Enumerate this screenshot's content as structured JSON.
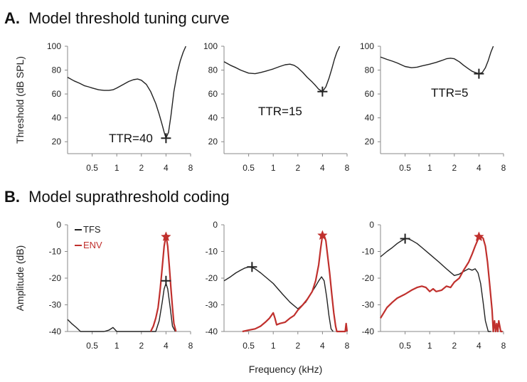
{
  "figure": {
    "panel_a": {
      "letter": "A.",
      "title": "Model threshold tuning curve"
    },
    "panel_b": {
      "letter": "B.",
      "title": "Model suprathreshold coding"
    },
    "shared_xlabel": "Frequency (kHz)"
  },
  "colors": {
    "tfs": "#222222",
    "env": "#c0302d",
    "axis": "#888888"
  },
  "chart_data": [
    {
      "type": "line",
      "panel": "A1",
      "xscale": "log",
      "xlim": [
        0.25,
        8
      ],
      "xticks": [
        0.5,
        1,
        2,
        4,
        8
      ],
      "xtick_labels": [
        "0.5",
        "1",
        "2",
        "4",
        "8"
      ],
      "ylim": [
        10,
        100
      ],
      "yticks": [
        20,
        40,
        60,
        80,
        100
      ],
      "ylabel": "Threshold (dB SPL)",
      "xlabel": "",
      "annotation": "TTR=40",
      "series": [
        {
          "color": "#222222",
          "x": [
            0.25,
            0.3,
            0.35,
            0.4,
            0.45,
            0.5,
            0.6,
            0.7,
            0.8,
            0.9,
            1.0,
            1.2,
            1.4,
            1.6,
            1.8,
            2.0,
            2.3,
            2.6,
            3.0,
            3.3,
            3.6,
            3.8,
            4.0,
            4.3,
            4.6,
            5.0,
            5.5,
            6.0,
            6.5,
            7.0
          ],
          "y": [
            74,
            71,
            69,
            67,
            66,
            65,
            63.5,
            63,
            63,
            63.5,
            65,
            68,
            70.5,
            72,
            72.5,
            71.5,
            68,
            62,
            52,
            43,
            34,
            28,
            23,
            28,
            42,
            62,
            78,
            88,
            95,
            100
          ]
        }
      ],
      "markers": [
        {
          "symbol": "+",
          "x": 4,
          "y": 23,
          "color": "#222222"
        }
      ]
    },
    {
      "type": "line",
      "panel": "A2",
      "xscale": "log",
      "xlim": [
        0.25,
        8
      ],
      "xticks": [
        0.5,
        1,
        2,
        4,
        8
      ],
      "xtick_labels": [
        "0.5",
        "1",
        "2",
        "4",
        "8"
      ],
      "ylim": [
        10,
        100
      ],
      "yticks": [
        20,
        40,
        60,
        80,
        100
      ],
      "ylabel": "",
      "xlabel": "",
      "annotation": "TTR=15",
      "series": [
        {
          "color": "#222222",
          "x": [
            0.25,
            0.3,
            0.35,
            0.4,
            0.5,
            0.6,
            0.7,
            0.8,
            1.0,
            1.2,
            1.4,
            1.6,
            1.8,
            2.0,
            2.3,
            2.6,
            3.0,
            3.3,
            3.6,
            4.0,
            4.4,
            4.8,
            5.2,
            5.6,
            6.0,
            6.5
          ],
          "y": [
            87,
            84,
            82,
            80,
            77.5,
            77,
            78,
            79,
            81,
            83,
            84.5,
            85,
            84,
            82,
            78,
            74,
            70,
            67,
            64,
            62,
            66,
            73,
            81,
            89,
            95,
            100
          ]
        }
      ],
      "markers": [
        {
          "symbol": "+",
          "x": 4,
          "y": 62,
          "color": "#222222"
        }
      ]
    },
    {
      "type": "line",
      "panel": "A3",
      "xscale": "log",
      "xlim": [
        0.25,
        8
      ],
      "xticks": [
        0.5,
        1,
        2,
        4,
        8
      ],
      "xtick_labels": [
        "0.5",
        "1",
        "2",
        "4",
        "8"
      ],
      "ylim": [
        10,
        100
      ],
      "yticks": [
        20,
        40,
        60,
        80,
        100
      ],
      "ylabel": "",
      "xlabel": "",
      "annotation": "TTR=5",
      "series": [
        {
          "color": "#222222",
          "x": [
            0.25,
            0.3,
            0.35,
            0.4,
            0.5,
            0.6,
            0.7,
            0.8,
            1.0,
            1.2,
            1.4,
            1.6,
            1.8,
            2.0,
            2.3,
            2.6,
            3.0,
            3.3,
            3.6,
            4.0,
            4.4,
            4.8,
            5.2,
            5.6,
            6.0
          ],
          "y": [
            91,
            89,
            87.5,
            86,
            83,
            82,
            82.5,
            83.5,
            85,
            86.5,
            88,
            89.5,
            90,
            89.5,
            87,
            84,
            81,
            79,
            78,
            77,
            78,
            82,
            88,
            95,
            100
          ]
        }
      ],
      "markers": [
        {
          "symbol": "+",
          "x": 4,
          "y": 77,
          "color": "#222222"
        }
      ]
    },
    {
      "type": "line",
      "panel": "B1",
      "xscale": "log",
      "xlim": [
        0.25,
        8
      ],
      "xticks": [
        0.5,
        1,
        2,
        4,
        8
      ],
      "xtick_labels": [
        "0.5",
        "1",
        "2",
        "4",
        "8"
      ],
      "ylim": [
        -40,
        0
      ],
      "yticks": [
        0,
        -10,
        -20,
        -30,
        -40
      ],
      "ylabel": "Amplitude (dB)",
      "xlabel": "",
      "legend": {
        "placement": "top-left"
      },
      "series": [
        {
          "name": "TFS",
          "color": "#222222",
          "x": [
            0.25,
            0.28,
            0.32,
            0.36,
            0.4,
            0.45,
            0.5,
            0.6,
            0.7,
            0.8,
            0.9,
            1.0,
            1.1,
            1.3,
            1.6,
            2.0,
            2.5,
            3.0,
            3.3,
            3.6,
            3.8,
            4.0,
            4.2,
            4.5,
            4.8,
            5.2
          ],
          "y": [
            -35.5,
            -37,
            -38.5,
            -40,
            -40,
            -40,
            -40,
            -40,
            -40,
            -39.5,
            -38.5,
            -40,
            -40,
            -40,
            -40,
            -40,
            -40,
            -40,
            -36,
            -29,
            -24,
            -22,
            -24,
            -31,
            -38,
            -40
          ]
        },
        {
          "name": "ENV",
          "color": "#c0302d",
          "x": [
            2.6,
            2.8,
            3.0,
            3.2,
            3.4,
            3.6,
            3.8,
            4.0,
            4.2,
            4.4,
            4.6,
            4.8,
            5.0,
            5.3
          ],
          "y": [
            -40,
            -38,
            -35,
            -31,
            -24,
            -16,
            -8,
            -4,
            -8,
            -16,
            -24,
            -31,
            -37,
            -40
          ]
        }
      ],
      "markers": [
        {
          "symbol": "+",
          "x": 4,
          "y": -21,
          "color": "#222222"
        },
        {
          "symbol": "*",
          "x": 4,
          "y": -4.5,
          "color": "#c0302d"
        }
      ]
    },
    {
      "type": "line",
      "panel": "B2",
      "xscale": "log",
      "xlim": [
        0.25,
        8
      ],
      "xticks": [
        0.5,
        1,
        2,
        4,
        8
      ],
      "xtick_labels": [
        "0.5",
        "1",
        "2",
        "4",
        "8"
      ],
      "ylim": [
        -40,
        0
      ],
      "yticks": [
        0,
        -10,
        -20,
        -30,
        -40
      ],
      "ylabel": "",
      "xlabel": "Frequency (kHz)",
      "series": [
        {
          "name": "TFS",
          "color": "#222222",
          "x": [
            0.25,
            0.3,
            0.35,
            0.4,
            0.45,
            0.5,
            0.55,
            0.6,
            0.7,
            0.8,
            1.0,
            1.3,
            1.6,
            2.0,
            2.5,
            3.0,
            3.3,
            3.6,
            3.9,
            4.2,
            4.5,
            4.8,
            5.1,
            5.4
          ],
          "y": [
            -21,
            -19.5,
            -18,
            -17,
            -16.2,
            -15.8,
            -16,
            -16.5,
            -18,
            -19.5,
            -22,
            -26,
            -29,
            -31.5,
            -29,
            -25,
            -23,
            -21,
            -19.5,
            -21,
            -27,
            -34,
            -39,
            -40
          ]
        },
        {
          "name": "ENV",
          "color": "#c0302d",
          "x": [
            0.42,
            0.5,
            0.6,
            0.7,
            0.8,
            0.9,
            1.0,
            1.05,
            1.1,
            1.2,
            1.4,
            1.6,
            1.8,
            2.0,
            2.3,
            2.6,
            3.0,
            3.3,
            3.6,
            3.8,
            4.0,
            4.2,
            4.4,
            4.6,
            4.9,
            5.2,
            5.5,
            5.8,
            6.0,
            6.2,
            7.6,
            7.8,
            8.0
          ],
          "y": [
            -40,
            -39.5,
            -39,
            -38,
            -36.5,
            -35,
            -33,
            -35,
            -37.5,
            -37,
            -36.5,
            -35,
            -34,
            -32,
            -30,
            -28,
            -25,
            -21,
            -15,
            -9,
            -4,
            -4,
            -6,
            -11,
            -18,
            -26,
            -33,
            -38,
            -40,
            -40,
            -40,
            -37,
            -40
          ]
        }
      ],
      "markers": [
        {
          "symbol": "+",
          "x": 0.55,
          "y": -15.8,
          "color": "#222222"
        },
        {
          "symbol": "*",
          "x": 4,
          "y": -4,
          "color": "#c0302d"
        }
      ]
    },
    {
      "type": "line",
      "panel": "B3",
      "xscale": "log",
      "xlim": [
        0.25,
        8
      ],
      "xticks": [
        0.5,
        1,
        2,
        4,
        8
      ],
      "xtick_labels": [
        "0.5",
        "1",
        "2",
        "4",
        "8"
      ],
      "ylim": [
        -40,
        0
      ],
      "yticks": [
        0,
        -10,
        -20,
        -30,
        -40
      ],
      "ylabel": "",
      "xlabel": "",
      "series": [
        {
          "name": "TFS",
          "color": "#222222",
          "x": [
            0.25,
            0.3,
            0.35,
            0.4,
            0.45,
            0.5,
            0.55,
            0.6,
            0.7,
            0.8,
            1.0,
            1.3,
            1.6,
            2.0,
            2.3,
            2.6,
            3.0,
            3.3,
            3.6,
            3.9,
            4.2,
            4.5,
            4.8,
            5.2,
            5.6
          ],
          "y": [
            -12,
            -10,
            -8.5,
            -7,
            -6,
            -5.2,
            -5.3,
            -5.8,
            -7,
            -8.5,
            -11,
            -14,
            -16.5,
            -19,
            -18.5,
            -17.5,
            -16.5,
            -17,
            -16.5,
            -18,
            -22,
            -29,
            -36,
            -40,
            -40
          ]
        },
        {
          "name": "ENV",
          "color": "#c0302d",
          "x": [
            0.25,
            0.3,
            0.35,
            0.4,
            0.5,
            0.6,
            0.7,
            0.8,
            0.9,
            1.0,
            1.1,
            1.2,
            1.4,
            1.6,
            1.8,
            2.0,
            2.3,
            2.6,
            3.0,
            3.3,
            3.6,
            3.9,
            4.2,
            4.5,
            4.8,
            5.1,
            5.4,
            5.8,
            6.0,
            6.2,
            6.4,
            6.6,
            6.8,
            7.0,
            7.4,
            7.8
          ],
          "y": [
            -35,
            -31,
            -29,
            -27.5,
            -26,
            -24.5,
            -23.5,
            -23,
            -23.5,
            -25,
            -24,
            -25,
            -24.5,
            -23,
            -23.5,
            -21.5,
            -20,
            -17,
            -14,
            -11,
            -8,
            -5.5,
            -4.5,
            -5,
            -8,
            -14,
            -22,
            -32,
            -40,
            -36,
            -40,
            -37,
            -40,
            -36,
            -40,
            -40
          ]
        }
      ],
      "markers": [
        {
          "symbol": "+",
          "x": 0.5,
          "y": -5.2,
          "color": "#222222"
        },
        {
          "symbol": "*",
          "x": 4,
          "y": -4.5,
          "color": "#c0302d"
        }
      ]
    }
  ]
}
